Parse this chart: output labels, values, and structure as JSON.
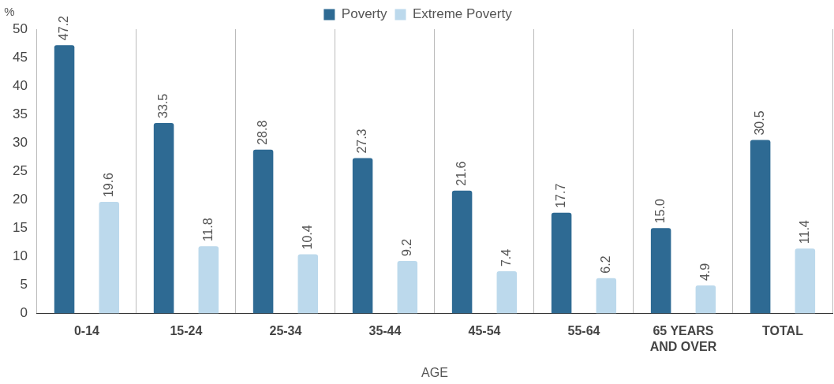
{
  "chart_data": {
    "type": "bar",
    "xlabel": "AGE",
    "ylabel": "%",
    "categories": [
      "0-14",
      "15-24",
      "25-34",
      "35-44",
      "45-54",
      "55-64",
      "65 YEARS AND OVER",
      "TOTAL"
    ],
    "series": [
      {
        "name": "Poverty",
        "color": "#2e6a93",
        "values": [
          47.2,
          33.5,
          28.8,
          27.3,
          21.6,
          17.7,
          15.0,
          30.5
        ],
        "value_labels": [
          "47.2",
          "33.5",
          "28.8",
          "27.3",
          "21.6",
          "17.7",
          "15.0",
          "30.5"
        ]
      },
      {
        "name": "Extreme Poverty",
        "color": "#bcd9ec",
        "values": [
          19.6,
          11.8,
          10.4,
          9.2,
          7.4,
          6.2,
          4.9,
          11.4
        ],
        "value_labels": [
          "19.6",
          "11.8",
          "10.4",
          "9.2",
          "7.4",
          "6.2",
          "4.9",
          "11.4"
        ]
      }
    ],
    "ylim": [
      0,
      50
    ],
    "yticks": [
      0,
      5,
      10,
      15,
      20,
      25,
      30,
      35,
      40,
      45,
      50
    ],
    "grid": "x",
    "legend": "top"
  }
}
